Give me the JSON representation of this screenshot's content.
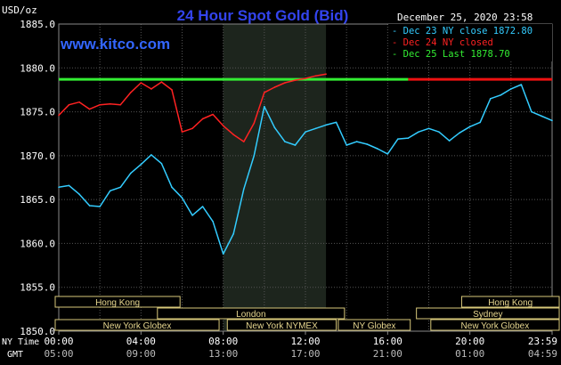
{
  "chart_data": {
    "type": "line",
    "title": "24 Hour Spot Gold (Bid)",
    "subtitle": "www.kitco.com",
    "timestamp": "December 25, 2020 23:58",
    "y_unit_label": "USD/oz",
    "ylim": [
      1850,
      1885
    ],
    "y_ticks": [
      "1885.0",
      "1880.0",
      "1875.0",
      "1870.0",
      "1865.0",
      "1860.0",
      "1855.0",
      "1850.0"
    ],
    "x_row_labels": {
      "ny": "NY Time",
      "gmt": "GMT"
    },
    "x_ticks_ny": [
      "00:00",
      "04:00",
      "08:00",
      "12:00",
      "16:00",
      "20:00",
      "23:59"
    ],
    "x_ticks_gmt": [
      "05:00",
      "09:00",
      "13:00",
      "17:00",
      "21:00",
      "01:00",
      "04:59"
    ],
    "xlim_hours": [
      0,
      24
    ],
    "shaded_session_hours": [
      8,
      13
    ],
    "legend": [
      {
        "text": "Dec 23 NY close 1872.80",
        "color": "#33ccff"
      },
      {
        "text": "Dec 24 NY closed",
        "color": "#ff2222"
      },
      {
        "text": "Dec 25 Last 1878.70",
        "color": "#33ee33"
      }
    ],
    "reference_lines": [
      {
        "name": "Dec 25 Last",
        "value": 1878.7,
        "from": 0,
        "to": 17,
        "color": "#33ee33"
      },
      {
        "name": "Dec 25 Last",
        "value": 1878.7,
        "from": 17,
        "to": 24,
        "color": "#ee1111"
      }
    ],
    "series": [
      {
        "name": "Dec 23",
        "color": "#33ccff",
        "x": [
          0,
          0.5,
          1,
          1.5,
          2,
          2.5,
          3,
          3.5,
          4,
          4.5,
          5,
          5.5,
          6,
          6.5,
          7,
          7.5,
          8,
          8.5,
          9,
          9.5,
          10,
          10.5,
          11,
          11.5,
          12,
          12.5,
          13,
          13.5,
          14,
          14.5,
          15,
          15.5,
          16,
          16.5,
          17,
          17.5,
          18,
          18.5,
          19,
          19.5,
          20,
          20.5,
          21,
          21.5,
          22,
          22.5,
          23,
          23.5,
          24
        ],
        "values": [
          1866.4,
          1866.6,
          1865.6,
          1864.3,
          1864.2,
          1866.0,
          1866.4,
          1868.0,
          1869.0,
          1870.1,
          1869.1,
          1866.4,
          1865.2,
          1863.2,
          1864.2,
          1862.5,
          1858.8,
          1861.1,
          1866.2,
          1870.0,
          1875.6,
          1873.2,
          1871.6,
          1871.2,
          1872.7,
          1873.1,
          1873.5,
          1873.8,
          1871.2,
          1871.6,
          1871.3,
          1870.8,
          1870.2,
          1871.9,
          1872.0,
          1872.7,
          1873.1,
          1872.7,
          1871.7,
          1872.6,
          1873.3,
          1873.8,
          1876.5,
          1876.9,
          1877.6,
          1878.1,
          1875.0,
          1874.5,
          1874.0
        ]
      },
      {
        "name": "Dec 24",
        "color": "#ff2222",
        "x": [
          0,
          0.5,
          1,
          1.5,
          2,
          2.5,
          3,
          3.5,
          4,
          4.5,
          5,
          5.5,
          6,
          6.5,
          7,
          7.5,
          8,
          8.5,
          9,
          9.5,
          10,
          10.5,
          11,
          11.5,
          12,
          12.5,
          13
        ],
        "values": [
          1874.6,
          1875.8,
          1876.1,
          1875.3,
          1875.8,
          1875.9,
          1875.8,
          1877.2,
          1878.3,
          1877.6,
          1878.4,
          1877.5,
          1872.7,
          1873.1,
          1874.2,
          1874.7,
          1873.4,
          1872.4,
          1871.6,
          1873.7,
          1877.2,
          1877.8,
          1878.3,
          1878.6,
          1878.8,
          1879.1,
          1879.3
        ]
      }
    ],
    "sessions": [
      {
        "name": "Hong Kong",
        "start": -1,
        "end": 5.9,
        "row": 1
      },
      {
        "name": "London",
        "start": 4.8,
        "end": 13.9,
        "row": 2
      },
      {
        "name": "New York Globex",
        "start": -1,
        "end": 7.8,
        "row": 3
      },
      {
        "name": "New York NYMEX",
        "start": 8.2,
        "end": 13.5,
        "row": 3
      },
      {
        "name": "NY Globex",
        "start": 13.6,
        "end": 17.1,
        "row": 3
      },
      {
        "name": "Hong Kong",
        "start": 19.6,
        "end": 25,
        "row": 1
      },
      {
        "name": "Sydney",
        "start": 17.4,
        "end": 25,
        "row": 2
      },
      {
        "name": "New York Globex",
        "start": 18.1,
        "end": 25,
        "row": 3
      }
    ]
  }
}
